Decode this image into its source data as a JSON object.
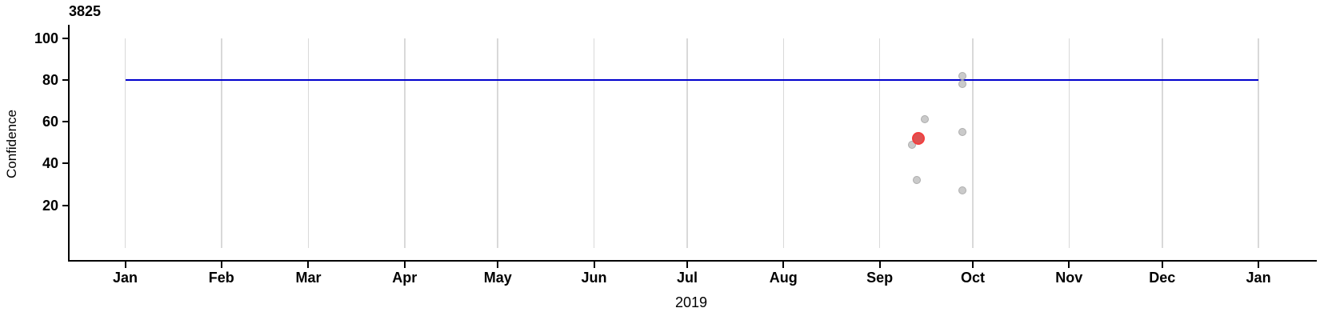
{
  "chart_data": {
    "type": "scatter",
    "title": "3825",
    "xlabel": "2019",
    "ylabel": "Confidence",
    "x_axis": {
      "unit": "date",
      "range_days": [
        0,
        365
      ],
      "ticks": [
        {
          "label": "Jan",
          "day": 0
        },
        {
          "label": "Feb",
          "day": 31
        },
        {
          "label": "Mar",
          "day": 59
        },
        {
          "label": "Apr",
          "day": 90
        },
        {
          "label": "May",
          "day": 120
        },
        {
          "label": "Jun",
          "day": 151
        },
        {
          "label": "Jul",
          "day": 181
        },
        {
          "label": "Aug",
          "day": 212
        },
        {
          "label": "Sep",
          "day": 243
        },
        {
          "label": "Oct",
          "day": 273
        },
        {
          "label": "Nov",
          "day": 304
        },
        {
          "label": "Dec",
          "day": 334
        },
        {
          "label": "Jan",
          "day": 365
        }
      ]
    },
    "y_axis": {
      "ticks": [
        100,
        80,
        60,
        40,
        20
      ],
      "range": [
        0,
        100
      ],
      "gridline_value_span": [
        0,
        100
      ]
    },
    "grid": "vertical-month-gridlines",
    "legend": "none",
    "reference_line": {
      "y": 80,
      "x_span_days": [
        0,
        365
      ]
    },
    "points": [
      {
        "date": "Sep 27",
        "day": 269.7,
        "confidence": 82,
        "series": "normal"
      },
      {
        "date": "Sep 27",
        "day": 269.7,
        "confidence": 78,
        "series": "normal"
      },
      {
        "date": "Sep 15",
        "day": 257.6,
        "confidence": 61,
        "series": "normal"
      },
      {
        "date": "Sep 27",
        "day": 269.7,
        "confidence": 55,
        "series": "normal"
      },
      {
        "date": "Sep 11",
        "day": 253.4,
        "confidence": 49,
        "series": "normal"
      },
      {
        "date": "Sep 12",
        "day": 255.0,
        "confidence": 32,
        "series": "normal"
      },
      {
        "date": "Sep 27",
        "day": 269.7,
        "confidence": 27,
        "series": "normal"
      },
      {
        "date": "Sep 12",
        "day": 255.4,
        "confidence": 52,
        "series": "highlighted"
      }
    ],
    "colors": {
      "normal_point_fill": "#CACACA",
      "normal_point_stroke": "#ADADAD",
      "highlighted_point_fill": "#DE5151",
      "highlighted_point_stroke": "#F23E3E",
      "reference_line": "#0000CD",
      "gridline": "#D9D9D9",
      "axis": "#000000",
      "background": "#FFFFFF"
    }
  }
}
